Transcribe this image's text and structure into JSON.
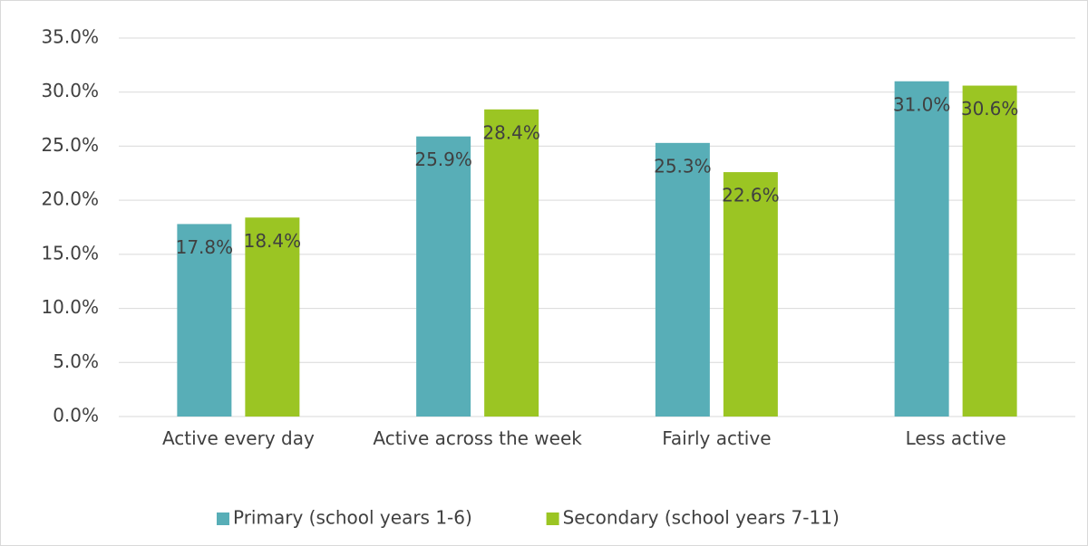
{
  "chart_data": {
    "type": "bar",
    "categories": [
      "Active every day",
      "Active across the week",
      "Fairly active",
      "Less active"
    ],
    "series": [
      {
        "name": "Primary (school years 1-6)",
        "color": "#58aeb7",
        "values": [
          17.8,
          25.9,
          25.3,
          31.0
        ],
        "value_labels": [
          "17.8%",
          "25.9%",
          "25.3%",
          "31.0%"
        ]
      },
      {
        "name": "Secondary (school years 7-11)",
        "color": "#9bc523",
        "values": [
          18.4,
          28.4,
          22.6,
          30.6
        ],
        "value_labels": [
          "18.4%",
          "28.4%",
          "22.6%",
          "30.6%"
        ]
      }
    ],
    "ylim": [
      0,
      35
    ],
    "yticks": [
      {
        "value": 0,
        "label": "0.0%"
      },
      {
        "value": 5,
        "label": "5.0%"
      },
      {
        "value": 10,
        "label": "10.0%"
      },
      {
        "value": 15,
        "label": "15.0%"
      },
      {
        "value": 20,
        "label": "20.0%"
      },
      {
        "value": 25,
        "label": "25.0%"
      },
      {
        "value": 30,
        "label": "30.0%"
      },
      {
        "value": 35,
        "label": "35.0%"
      }
    ],
    "grid": true,
    "legend": "bottom"
  }
}
